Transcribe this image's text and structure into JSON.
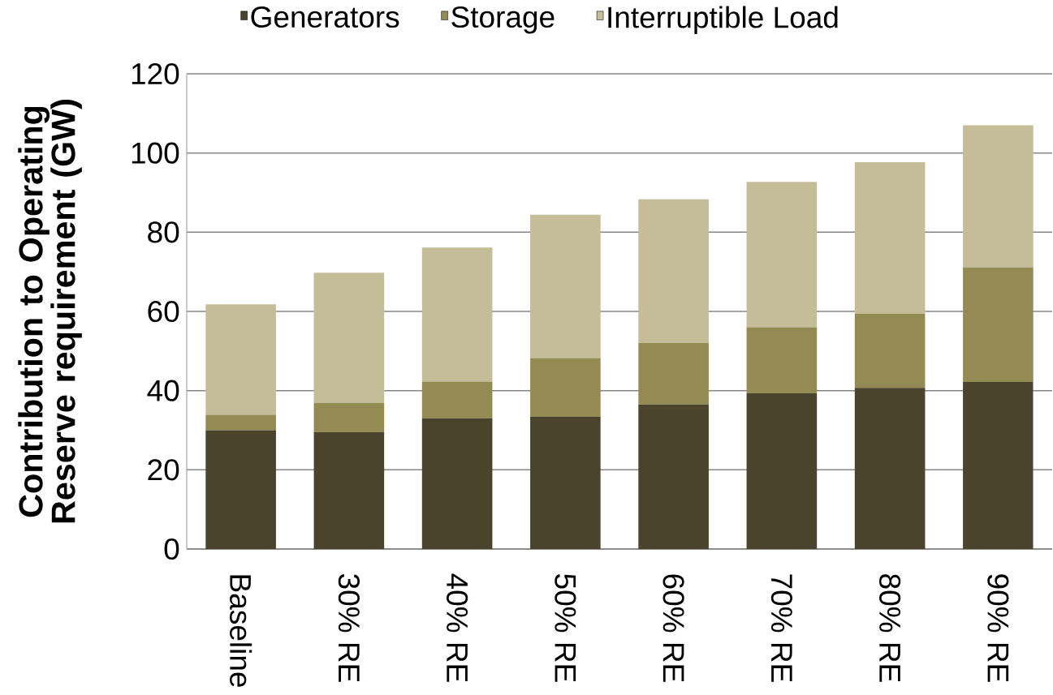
{
  "chart_data": {
    "type": "bar",
    "stacked": true,
    "ylabel": "Contribution to Operating Reserve requirement (GW)",
    "categories": [
      "Baseline",
      "30% RE",
      "40% RE",
      "50% RE",
      "60% RE",
      "70% RE",
      "80% RE",
      "90% RE"
    ],
    "series": [
      {
        "name": "Generators",
        "color": "#4a442d",
        "values": [
          30.0,
          29.5,
          33.0,
          33.4,
          36.5,
          39.3,
          40.7,
          42.2
        ]
      },
      {
        "name": "Storage",
        "color": "#948a54",
        "values": [
          3.9,
          7.4,
          9.3,
          14.8,
          15.5,
          16.7,
          18.7,
          28.9
        ]
      },
      {
        "name": "Interruptible Load",
        "color": "#c4bd97",
        "values": [
          27.9,
          32.9,
          33.8,
          36.2,
          36.3,
          36.7,
          38.3,
          35.9
        ]
      }
    ],
    "ylim": [
      0,
      120
    ],
    "yticks": [
      0,
      20,
      40,
      60,
      80,
      100,
      120
    ],
    "grid": "y",
    "legend": "top"
  }
}
